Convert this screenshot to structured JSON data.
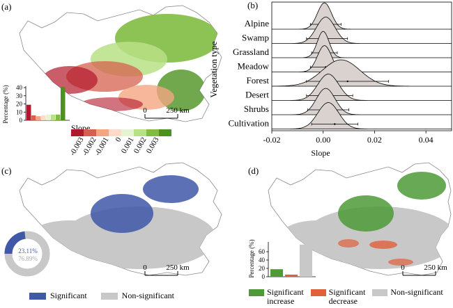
{
  "panels": {
    "a": {
      "label": "(a)",
      "histogram": {
        "ylabel": "Percentage (%)",
        "yticks": [
          "0",
          "10",
          "20",
          "30",
          "40"
        ],
        "values": [
          19,
          6,
          5,
          6,
          7,
          7,
          7,
          41
        ],
        "colors": [
          "#b2182b",
          "#d6604d",
          "#f4a582",
          "#fddbc7",
          "#e6f5d0",
          "#b8e186",
          "#7fbc41",
          "#4d9221"
        ]
      },
      "colorbar": {
        "title": "Slope",
        "colors": [
          "#b2182b",
          "#d6604d",
          "#f4a582",
          "#fddbc7",
          "#e6f5d0",
          "#b8e186",
          "#7fbc41",
          "#4d9221"
        ],
        "ticks": [
          "-0.003",
          "-0.002",
          "-0.001",
          "0",
          "0.001",
          "0.002",
          "0.003"
        ]
      },
      "scalebar": {
        "left": "0",
        "right": "250 km"
      }
    },
    "b": {
      "label": "(b)",
      "chart_data": {
        "type": "ridgeline",
        "ylabel": "Vegetation type",
        "xlabel": "Slope",
        "xlim": [
          -0.02,
          0.05
        ],
        "xticks": [
          "-0.02",
          "0.00",
          "0.02",
          "0.04"
        ],
        "categories": [
          "Alpine",
          "Swamp",
          "Grassland",
          "Meadow",
          "Forest",
          "Desert",
          "Shrubs",
          "Cultivation"
        ],
        "means": [
          0.001,
          0.0015,
          0.0005,
          0.001,
          0.0095,
          0.0025,
          0.002,
          0.0045
        ],
        "spreads": [
          0.006,
          0.008,
          0.005,
          0.006,
          0.016,
          0.009,
          0.008,
          0.009
        ],
        "peaks": [
          0.0005,
          0.001,
          0.0,
          0.0005,
          0.007,
          0.002,
          0.001,
          0.002
        ],
        "fill": "#d9d2cf"
      }
    },
    "c": {
      "label": "(c)",
      "donut": {
        "significant": "23.11%",
        "non_significant": "76.89%",
        "sig_color": "#3f58a8",
        "non_color": "#c8c8c8"
      },
      "scalebar": {
        "left": "0",
        "right": "250 km"
      },
      "legend": [
        {
          "label": "Significant",
          "color": "#3f58a8"
        },
        {
          "label": "Non-significant",
          "color": "#c8c8c8"
        }
      ]
    },
    "d": {
      "label": "(d)",
      "histogram": {
        "ylabel": "Percentage (%)",
        "yticks": [
          "0",
          "20",
          "40",
          "60"
        ],
        "values": [
          18,
          5,
          77
        ],
        "colors": [
          "#4e9a38",
          "#e0603c",
          "#c8c8c8"
        ]
      },
      "scalebar": {
        "left": "0",
        "right": "250 km"
      },
      "legend": [
        {
          "label1": "Significant",
          "label2": "increase",
          "color": "#4e9a38"
        },
        {
          "label1": "Significant",
          "label2": "decrease",
          "color": "#e0603c"
        },
        {
          "label1": "Non-significant",
          "label2": "",
          "color": "#c8c8c8"
        }
      ]
    }
  }
}
